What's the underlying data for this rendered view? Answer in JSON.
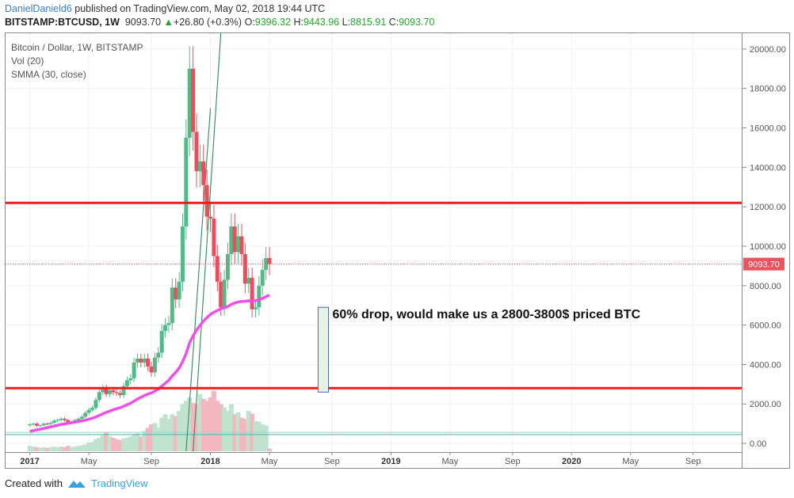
{
  "header": {
    "user": "DanielDanield6",
    "published": "published on TradingView.com, May 02, 2018 19:44 UTC",
    "symbol": "BITSTAMP:BTCUSD, 1W",
    "last": "9093.70",
    "change_arrow": "▲",
    "change": "+26.80 (+0.3%)",
    "o_label": "O:",
    "o": "9396.32",
    "h_label": "H:",
    "h": "9443.96",
    "l_label": "L:",
    "l": "8815.91",
    "c_label": "C:",
    "c": "9093.70"
  },
  "legend": {
    "title": "Bitcoin / Dollar, 1W, BITSTAMP",
    "vol": "Vol (20)",
    "smma": "SMMA (30, close)"
  },
  "annotation": "60% drop, would make us a 2800-3800$ priced BTC",
  "price_badge": "9093.70",
  "footer": {
    "created_with": "Created with",
    "brand": "TradingView"
  },
  "colors": {
    "up": "#53b987",
    "down": "#eb4d5c",
    "smma": "#ef4fe6",
    "level": "#ee1c1c",
    "badge": "#e6545f"
  },
  "chart_data": {
    "type": "candlestick",
    "title": "Bitcoin / Dollar, 1W, BITSTAMP",
    "yticks": [
      0,
      2000,
      4000,
      6000,
      8000,
      10000,
      12000,
      14000,
      16000,
      18000,
      20000
    ],
    "ytick_labels": [
      "0.00",
      "2000.00",
      "4000.00",
      "6000.00",
      "8000.00",
      "10000.00",
      "12000.00",
      "14000.00",
      "16000.00",
      "18000.00",
      "20000.00"
    ],
    "ylim": [
      -400,
      20800
    ],
    "xtick_labels": [
      "2017",
      "May",
      "Sep",
      "2018",
      "May",
      "Sep",
      "2019",
      "May",
      "Sep",
      "2020",
      "May",
      "Sep"
    ],
    "xtick_weeks": [
      0,
      17,
      35,
      52,
      69,
      87,
      104,
      121,
      139,
      156,
      173,
      191
    ],
    "xlim_weeks": [
      -7,
      205
    ],
    "horizontal_levels": [
      12200,
      2800
    ],
    "last_price": 9093.7,
    "drop_box": {
      "start_week": 83,
      "end_week": 86,
      "top": 6900,
      "bottom": 2600
    },
    "closes": [
      960,
      1000,
      900,
      920,
      1000,
      990,
      1050,
      1150,
      1190,
      1250,
      1180,
      1030,
      1080,
      1180,
      1250,
      1350,
      1550,
      1700,
      1800,
      2200,
      2600,
      2800,
      2500,
      2700,
      2600,
      2550,
      2450,
      2900,
      3200,
      3300,
      4100,
      4300,
      4100,
      4300,
      3900,
      3600,
      4350,
      4600,
      5700,
      6000,
      6100,
      7900,
      7300,
      8200,
      11000,
      15500,
      19000,
      15800,
      13800,
      14300,
      13100,
      11500,
      11400,
      9500,
      8200,
      6900,
      8300,
      9600,
      11000,
      9700,
      10500,
      9600,
      8100,
      8400,
      6800,
      6900,
      8000,
      8800,
      9400,
      9093.7
    ],
    "smma": [
      600,
      650,
      690,
      720,
      760,
      800,
      840,
      880,
      920,
      960,
      990,
      1020,
      1050,
      1080,
      1110,
      1140,
      1180,
      1230,
      1280,
      1340,
      1420,
      1500,
      1570,
      1640,
      1700,
      1760,
      1810,
      1880,
      1960,
      2040,
      2140,
      2250,
      2340,
      2430,
      2500,
      2560,
      2650,
      2750,
      2900,
      3050,
      3200,
      3420,
      3600,
      3820,
      4150,
      4550,
      5100,
      5450,
      5750,
      5980,
      6200,
      6380,
      6540,
      6650,
      6740,
      6820,
      6880,
      6940,
      7050,
      7120,
      7170,
      7200,
      7210,
      7230,
      7220,
      7240,
      7280,
      7360,
      7440,
      7520
    ],
    "volume_relative": [
      0.08,
      0.07,
      0.06,
      0.05,
      0.06,
      0.05,
      0.06,
      0.07,
      0.06,
      0.07,
      0.06,
      0.08,
      0.06,
      0.07,
      0.08,
      0.09,
      0.1,
      0.13,
      0.14,
      0.18,
      0.2,
      0.24,
      0.28,
      0.22,
      0.2,
      0.18,
      0.17,
      0.19,
      0.2,
      0.22,
      0.25,
      0.27,
      0.22,
      0.3,
      0.35,
      0.4,
      0.42,
      0.35,
      0.5,
      0.55,
      0.48,
      0.55,
      0.52,
      0.6,
      0.7,
      0.75,
      0.8,
      0.72,
      0.7,
      0.85,
      0.78,
      0.75,
      0.8,
      0.9,
      0.75,
      0.7,
      0.65,
      0.6,
      0.7,
      0.55,
      0.58,
      0.5,
      0.48,
      0.6,
      0.56,
      0.45,
      0.44,
      0.4,
      0.38,
      0.04
    ]
  }
}
